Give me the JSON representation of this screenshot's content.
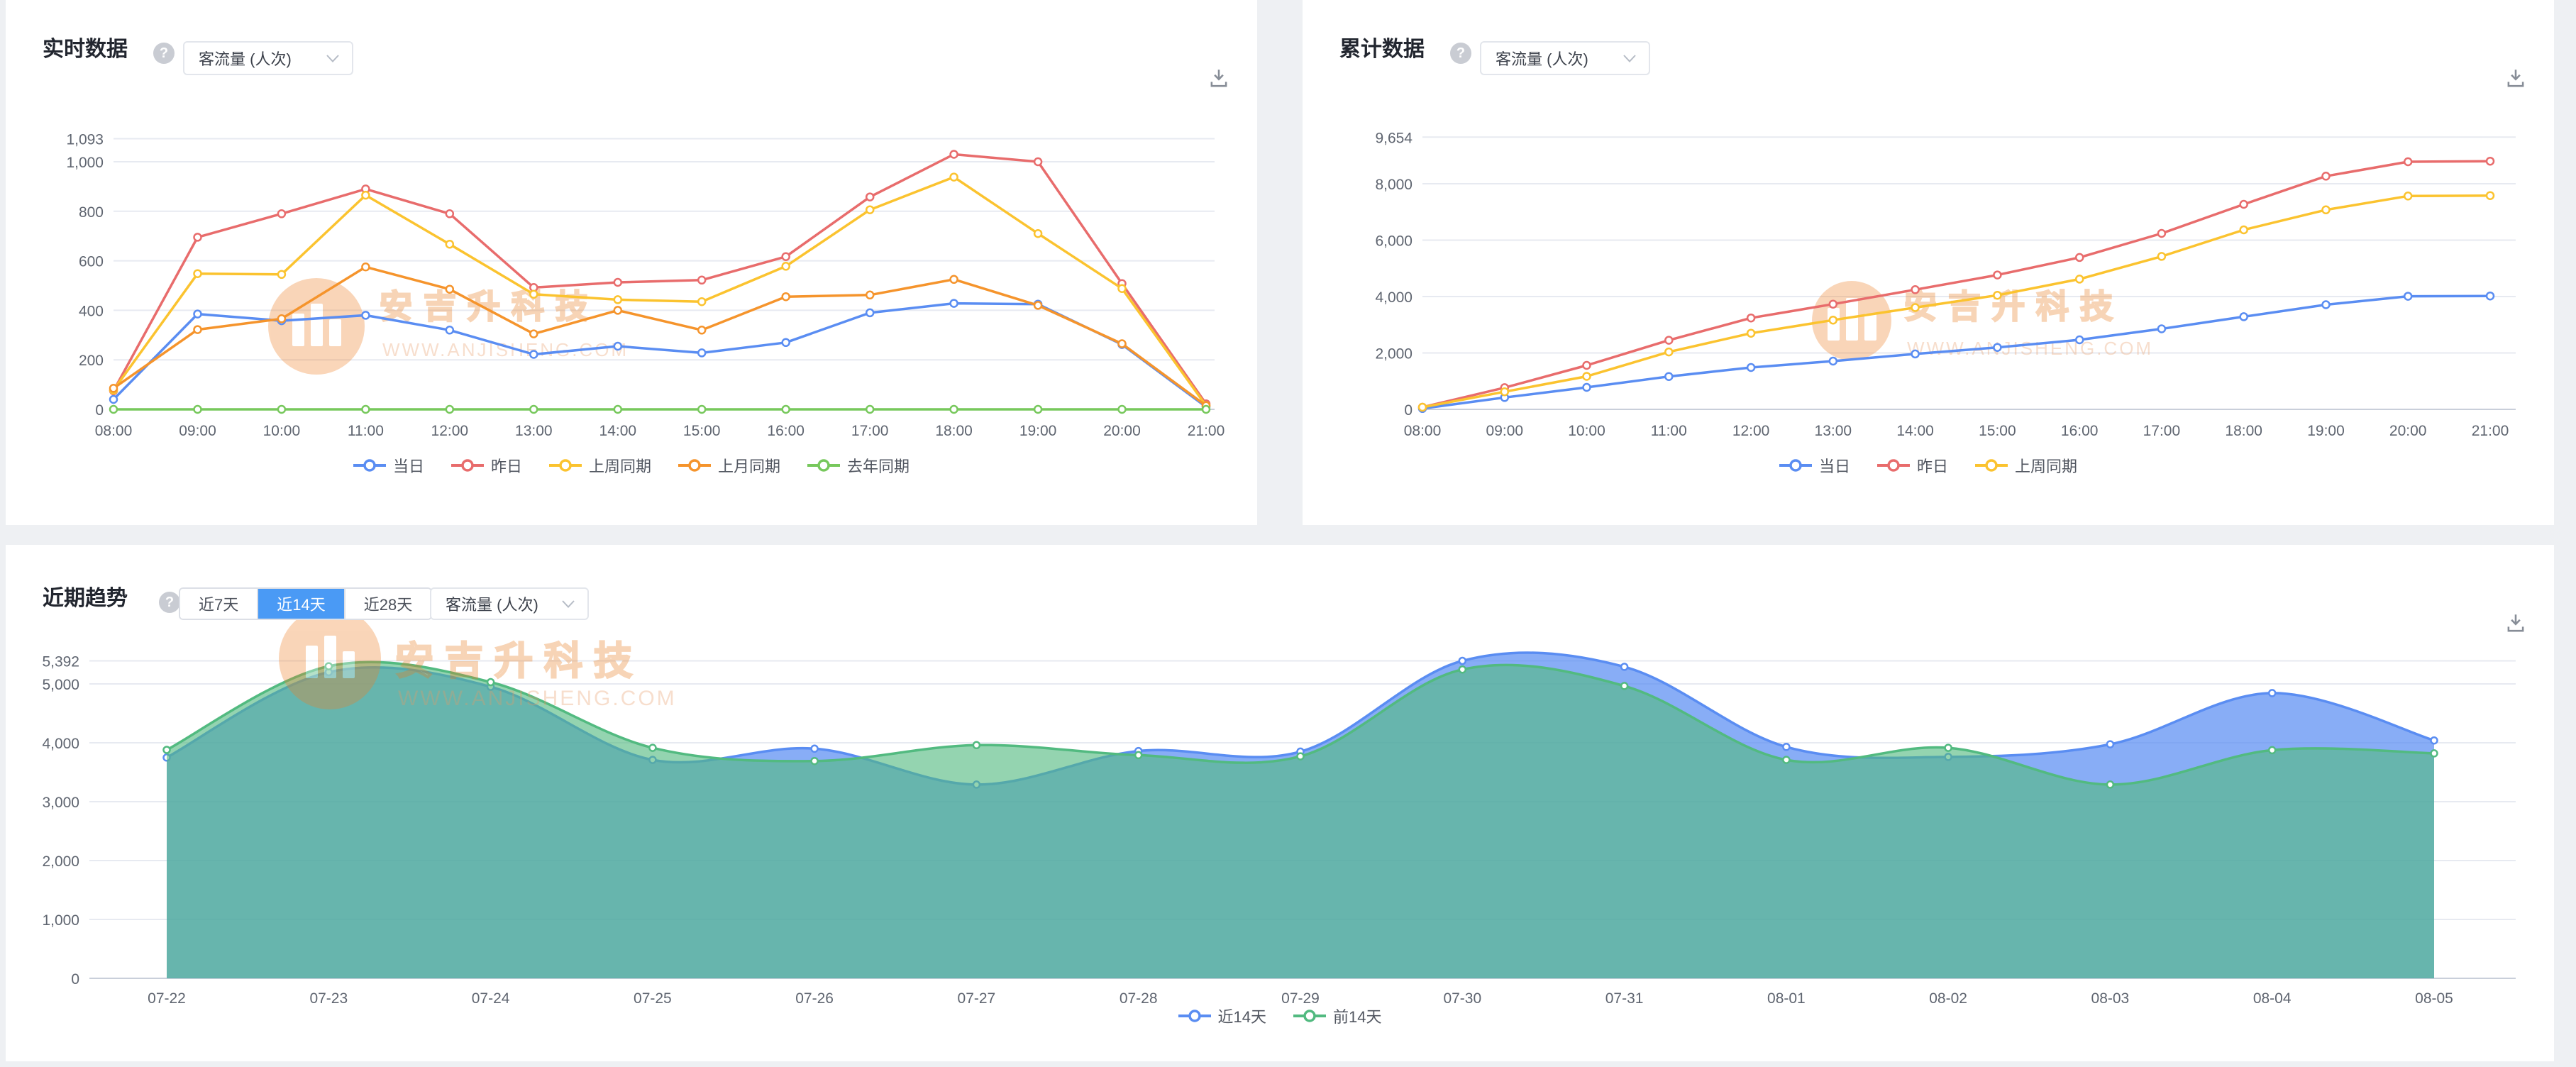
{
  "watermark": {
    "brand": "安吉升科技",
    "url": "WWW.ANJISHENG.COM"
  },
  "icons": {
    "help_glyph": "?"
  },
  "panels": {
    "realtime": {
      "title": "实时数据",
      "metric_select": "客流量 (人次)"
    },
    "cumulative": {
      "title": "累计数据",
      "metric_select": "客流量 (人次)"
    },
    "trend": {
      "title": "近期趋势",
      "metric_select": "客流量 (人次)",
      "range_buttons": [
        {
          "label": "近7天",
          "active": false
        },
        {
          "label": "近14天",
          "active": true
        },
        {
          "label": "近28天",
          "active": false
        }
      ]
    }
  },
  "chart_data": [
    {
      "type": "line",
      "title": "实时数据",
      "xlabel": "",
      "ylabel": "",
      "x": [
        "08:00",
        "09:00",
        "10:00",
        "11:00",
        "12:00",
        "13:00",
        "14:00",
        "15:00",
        "16:00",
        "17:00",
        "18:00",
        "19:00",
        "20:00",
        "21:00"
      ],
      "yticks": [
        0,
        200,
        400,
        600,
        800,
        1000,
        1093
      ],
      "ylim": [
        0,
        1093
      ],
      "grid": true,
      "legend_position": "bottom",
      "series": [
        {
          "name": "当日",
          "color": "#5a8df2",
          "values": [
            40,
            385,
            358,
            380,
            320,
            222,
            255,
            228,
            270,
            390,
            428,
            425,
            262,
            10
          ]
        },
        {
          "name": "昨日",
          "color": "#e86c6c",
          "values": [
            75,
            695,
            790,
            890,
            790,
            492,
            513,
            522,
            617,
            858,
            1030,
            1000,
            508,
            22
          ]
        },
        {
          "name": "上周同期",
          "color": "#fbc32f",
          "values": [
            78,
            548,
            545,
            865,
            667,
            465,
            443,
            435,
            578,
            806,
            938,
            710,
            488,
            15
          ]
        },
        {
          "name": "上月同期",
          "color": "#f5942c",
          "values": [
            85,
            322,
            366,
            575,
            485,
            305,
            400,
            320,
            455,
            462,
            525,
            420,
            265,
            15
          ]
        },
        {
          "name": "去年同期",
          "color": "#77c85c",
          "values": [
            0,
            0,
            0,
            0,
            0,
            0,
            0,
            0,
            0,
            0,
            0,
            0,
            0,
            0
          ]
        }
      ]
    },
    {
      "type": "line",
      "title": "累计数据",
      "xlabel": "",
      "ylabel": "",
      "x": [
        "08:00",
        "09:00",
        "10:00",
        "11:00",
        "12:00",
        "13:00",
        "14:00",
        "15:00",
        "16:00",
        "17:00",
        "18:00",
        "19:00",
        "20:00",
        "21:00"
      ],
      "yticks": [
        0,
        2000,
        4000,
        6000,
        8000,
        9654
      ],
      "ylim": [
        0,
        9654
      ],
      "grid": true,
      "legend_position": "bottom",
      "series": [
        {
          "name": "当日",
          "color": "#5a8df2",
          "values": [
            30,
            420,
            780,
            1165,
            1485,
            1710,
            1965,
            2195,
            2465,
            2855,
            3285,
            3710,
            4010,
            4020
          ]
        },
        {
          "name": "昨日",
          "color": "#e86c6c",
          "values": [
            75,
            770,
            1560,
            2450,
            3240,
            3730,
            4245,
            4765,
            5385,
            6240,
            7270,
            8270,
            8780,
            8800
          ]
        },
        {
          "name": "上周同期",
          "color": "#fbc32f",
          "values": [
            75,
            625,
            1170,
            2035,
            2700,
            3165,
            3610,
            4045,
            4620,
            5425,
            6365,
            7075,
            7565,
            7580
          ]
        }
      ]
    },
    {
      "type": "area",
      "title": "近期趋势",
      "xlabel": "",
      "ylabel": "",
      "x": [
        "07-22",
        "07-23",
        "07-24",
        "07-25",
        "07-26",
        "07-27",
        "07-28",
        "07-29",
        "07-30",
        "07-31",
        "08-01",
        "08-02",
        "08-03",
        "08-04",
        "08-05"
      ],
      "yticks": [
        0,
        1000,
        2000,
        3000,
        4000,
        5000,
        5392
      ],
      "ylim": [
        0,
        5392
      ],
      "grid": true,
      "smooth": true,
      "legend_position": "bottom",
      "series": [
        {
          "name": "近14天",
          "color": "#5a8df2",
          "fill": "rgba(90,141,242,0.72)",
          "values": [
            3750,
            5200,
            4950,
            3710,
            3900,
            3290,
            3860,
            3850,
            5392,
            5290,
            3930,
            3760,
            3975,
            4845,
            4040
          ]
        },
        {
          "name": "前14天",
          "color": "#52ba80",
          "fill": "rgba(82,186,128,0.62)",
          "values": [
            3880,
            5300,
            5030,
            3915,
            3690,
            3960,
            3790,
            3770,
            5245,
            4965,
            3710,
            3915,
            3290,
            3875,
            3820
          ]
        }
      ]
    }
  ]
}
